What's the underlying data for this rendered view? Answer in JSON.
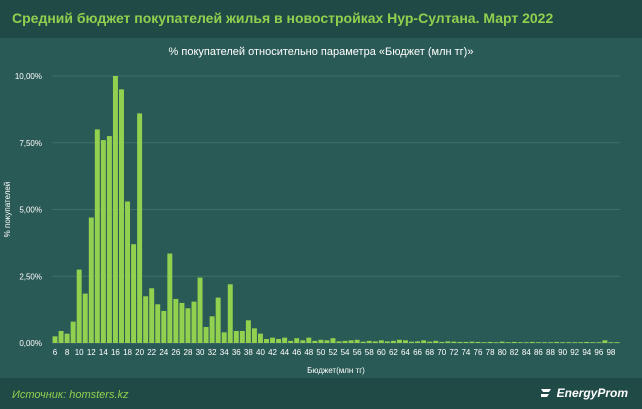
{
  "header": {
    "title": "Средний бюджет покупателей жилья в новостройках Нур-Султана. Март 2022"
  },
  "footer": {
    "source": "Источник: homsters.kz",
    "logo_text": "EnergyProm"
  },
  "colors": {
    "bar": "#92d050",
    "background": "#1f4a46",
    "panel": "#2a5a55",
    "title": "#8fd14f"
  },
  "chart_data": {
    "type": "bar",
    "title": "% покупателей относительно параметра «Бюджет (млн тг)»",
    "xlabel": "Бюджет(млн тг)",
    "ylabel": "% покупателей",
    "ylim": [
      0,
      10
    ],
    "yticks": [
      "0,00%",
      "2,50%",
      "5,00%",
      "7,50%",
      "10,00%"
    ],
    "grid": true,
    "x": [
      6,
      7,
      8,
      9,
      10,
      11,
      12,
      13,
      14,
      15,
      16,
      17,
      18,
      19,
      20,
      21,
      22,
      23,
      24,
      25,
      26,
      27,
      28,
      29,
      30,
      31,
      32,
      33,
      34,
      35,
      36,
      37,
      38,
      39,
      40,
      41,
      42,
      43,
      44,
      45,
      46,
      47,
      48,
      49,
      50,
      51,
      52,
      53,
      54,
      55,
      56,
      57,
      58,
      59,
      60,
      61,
      62,
      63,
      64,
      65,
      66,
      67,
      68,
      69,
      70,
      71,
      72,
      73,
      74,
      75,
      76,
      77,
      78,
      79,
      80,
      81,
      82,
      83,
      84,
      85,
      86,
      87,
      88,
      89,
      90,
      91,
      92,
      93,
      94,
      95,
      96,
      97,
      98,
      99
    ],
    "values": [
      0.25,
      0.45,
      0.35,
      0.8,
      2.75,
      1.85,
      4.7,
      8.0,
      7.6,
      7.75,
      10.0,
      9.5,
      5.3,
      3.7,
      8.6,
      1.75,
      2.05,
      1.45,
      1.2,
      3.35,
      1.65,
      1.5,
      1.3,
      1.55,
      2.45,
      0.6,
      1.0,
      1.7,
      0.4,
      2.2,
      0.45,
      0.45,
      0.85,
      0.55,
      0.35,
      0.15,
      0.2,
      0.15,
      0.2,
      0.08,
      0.18,
      0.1,
      0.2,
      0.08,
      0.12,
      0.1,
      0.18,
      0.06,
      0.08,
      0.1,
      0.12,
      0.05,
      0.08,
      0.06,
      0.1,
      0.06,
      0.08,
      0.12,
      0.1,
      0.05,
      0.06,
      0.1,
      0.05,
      0.08,
      0.04,
      0.06,
      0.05,
      0.04,
      0.04,
      0.05,
      0.04,
      0.03,
      0.04,
      0.03,
      0.05,
      0.03,
      0.04,
      0.03,
      0.03,
      0.04,
      0.03,
      0.03,
      0.03,
      0.04,
      0.03,
      0.03,
      0.03,
      0.03,
      0.04,
      0.03,
      0.03,
      0.1,
      0.03,
      0.03
    ]
  }
}
